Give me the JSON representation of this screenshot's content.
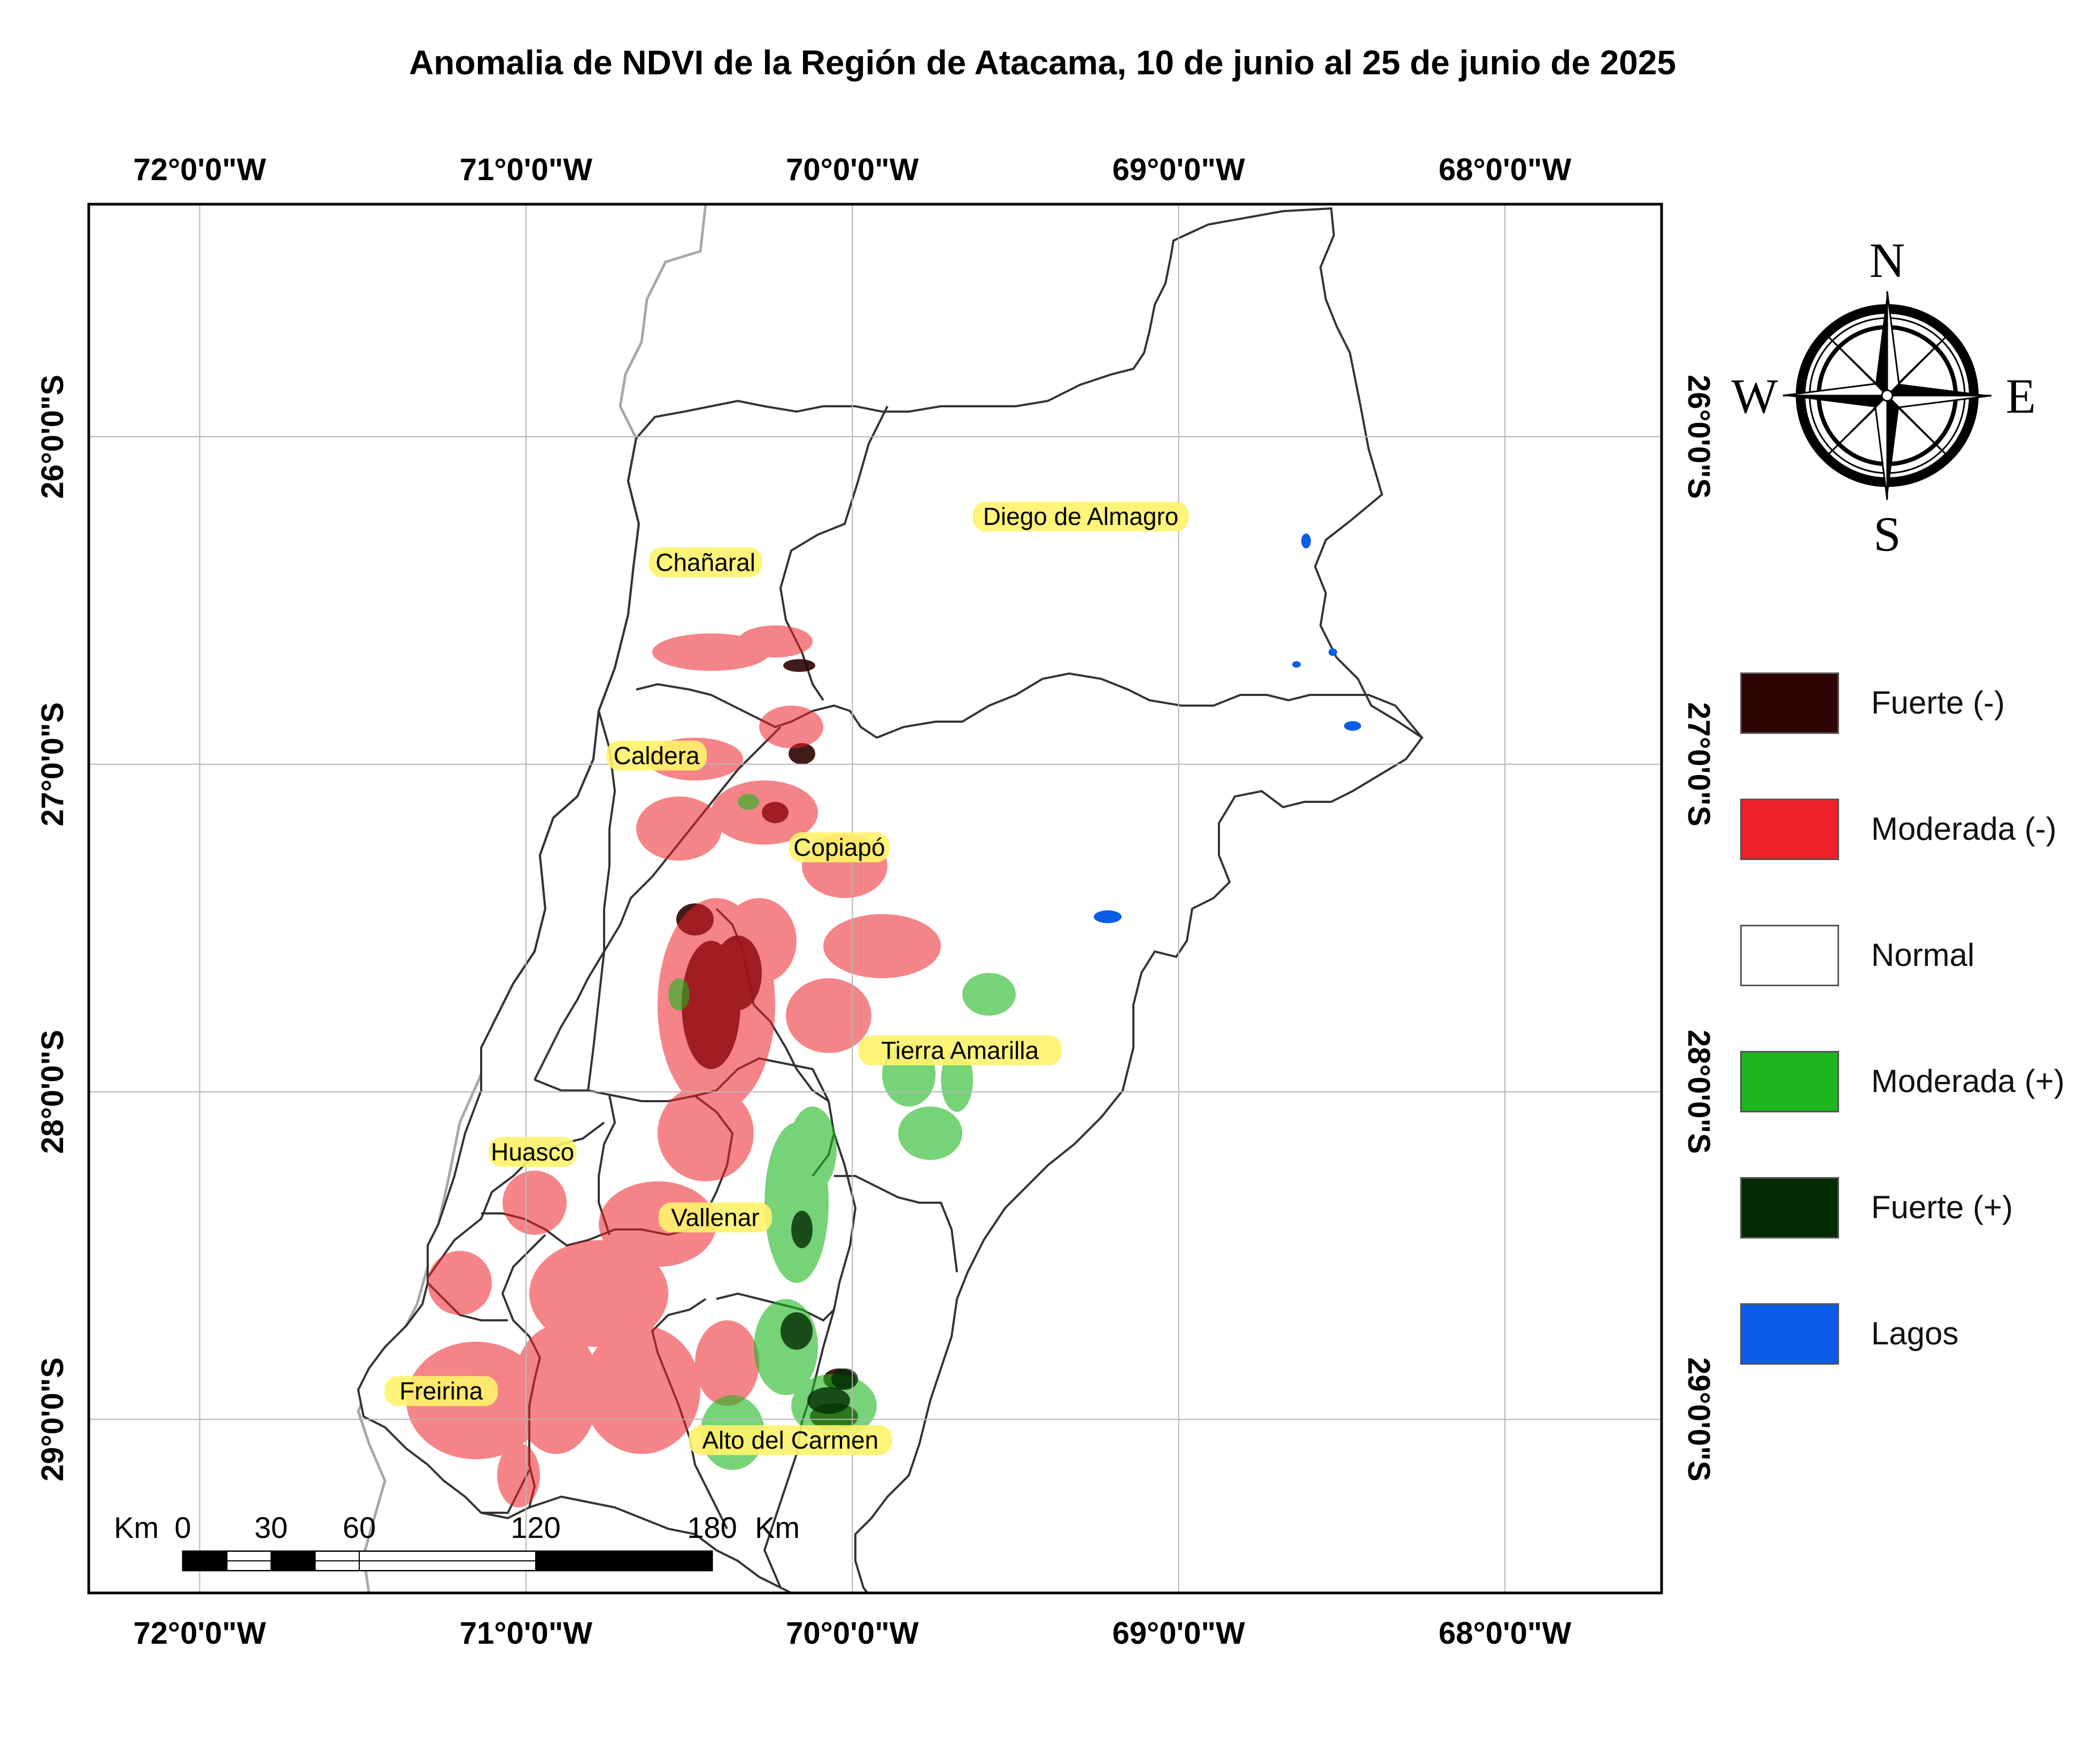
{
  "title": "Anomalia de NDVI de la Región de Atacama, 10 de junio al 25 de junio de 2025",
  "longitudes": [
    {
      "value": -72,
      "label": "72°0'0\"W"
    },
    {
      "value": -71,
      "label": "71°0'0\"W"
    },
    {
      "value": -70,
      "label": "70°0'0\"W"
    },
    {
      "value": -69,
      "label": "69°0'0\"W"
    },
    {
      "value": -68,
      "label": "68°0'0\"W"
    }
  ],
  "latitudes": [
    {
      "value": -26,
      "label": "26°0'0\"S"
    },
    {
      "value": -27,
      "label": "27°0'0\"S"
    },
    {
      "value": -28,
      "label": "28°0'0\"S"
    },
    {
      "value": -29,
      "label": "29°0'0\"S"
    }
  ],
  "extent": {
    "lon_min": -72.34,
    "lon_max": -67.52,
    "lat_max": -25.29,
    "lat_min": -29.53
  },
  "places": [
    {
      "name": "Chañaral",
      "lon": -70.45,
      "lat": -26.39
    },
    {
      "name": "Diego de Almagro",
      "lon": -69.3,
      "lat": -26.25
    },
    {
      "name": "Caldera",
      "lon": -70.6,
      "lat": -26.98
    },
    {
      "name": "Copiapó",
      "lon": -70.04,
      "lat": -27.26
    },
    {
      "name": "Tierra Amarilla",
      "lon": -69.67,
      "lat": -27.88
    },
    {
      "name": "Huasco",
      "lon": -70.98,
      "lat": -28.19
    },
    {
      "name": "Vallenar",
      "lon": -70.42,
      "lat": -28.39
    },
    {
      "name": "Freirina",
      "lon": -71.26,
      "lat": -28.92
    },
    {
      "name": "Alto del Carmen",
      "lon": -70.19,
      "lat": -29.07
    }
  ],
  "compass": {
    "n": "N",
    "s": "S",
    "e": "E",
    "w": "W"
  },
  "scale_bar": {
    "start_label": "Km",
    "end_label": "Km",
    "ticks": [
      {
        "km": 0,
        "label": "0"
      },
      {
        "km": 30,
        "label": "30"
      },
      {
        "km": 60,
        "label": "60"
      },
      {
        "km": 120,
        "label": "120"
      },
      {
        "km": 180,
        "label": "180"
      }
    ]
  },
  "legend": [
    {
      "label": "Fuerte (-)",
      "color": "#2e0303"
    },
    {
      "label": "Moderada (-)",
      "color": "#ee2028"
    },
    {
      "label": "Normal",
      "color": "#ffffff"
    },
    {
      "label": "Moderada (+)",
      "color": "#1db61d"
    },
    {
      "label": "Fuerte (+)",
      "color": "#022b02"
    },
    {
      "label": "Lagos",
      "color": "#0b5ce6"
    }
  ]
}
